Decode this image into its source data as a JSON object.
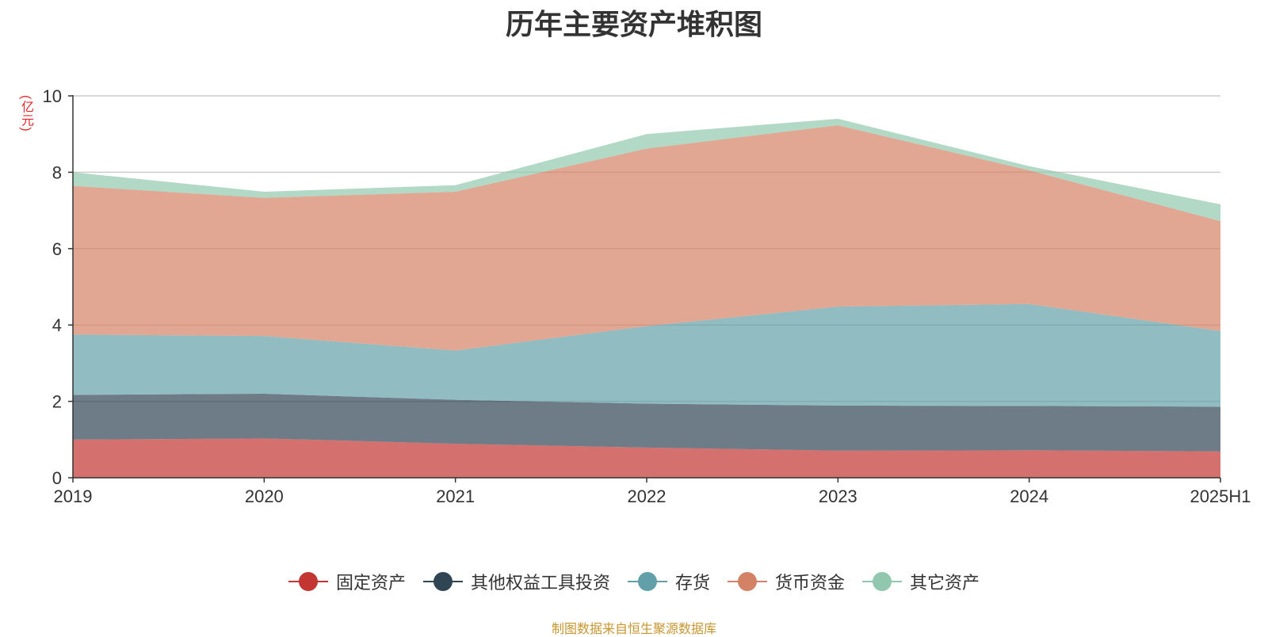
{
  "chart_data": {
    "type": "area",
    "title": "历年主要资产堆积图",
    "y_unit": "(亿元)",
    "stacked": true,
    "x": [
      "2019",
      "2020",
      "2021",
      "2022",
      "2023",
      "2024",
      "2025H1"
    ],
    "ylim": [
      0,
      10
    ],
    "yticks": [
      0,
      2,
      4,
      6,
      8,
      10
    ],
    "grid": true,
    "legend_position": "bottom",
    "series": [
      {
        "name": "固定资产",
        "color": "#c23531",
        "values": [
          1.0,
          1.03,
          0.89,
          0.79,
          0.71,
          0.72,
          0.69
        ]
      },
      {
        "name": "其他权益工具投资",
        "color": "#2f4554",
        "values": [
          1.17,
          1.17,
          1.15,
          1.15,
          1.18,
          1.16,
          1.17
        ]
      },
      {
        "name": "存货",
        "color": "#61a0a8",
        "values": [
          1.58,
          1.51,
          1.29,
          2.03,
          2.59,
          2.67,
          1.98
        ]
      },
      {
        "name": "货币资金",
        "color": "#d48265",
        "values": [
          3.89,
          3.62,
          4.16,
          4.65,
          4.75,
          3.5,
          2.88
        ]
      },
      {
        "name": "其它资产",
        "color": "#91c7ae",
        "values": [
          0.36,
          0.16,
          0.17,
          0.38,
          0.17,
          0.11,
          0.44
        ]
      }
    ]
  },
  "source_note": "制图数据来自恒生聚源数据库"
}
